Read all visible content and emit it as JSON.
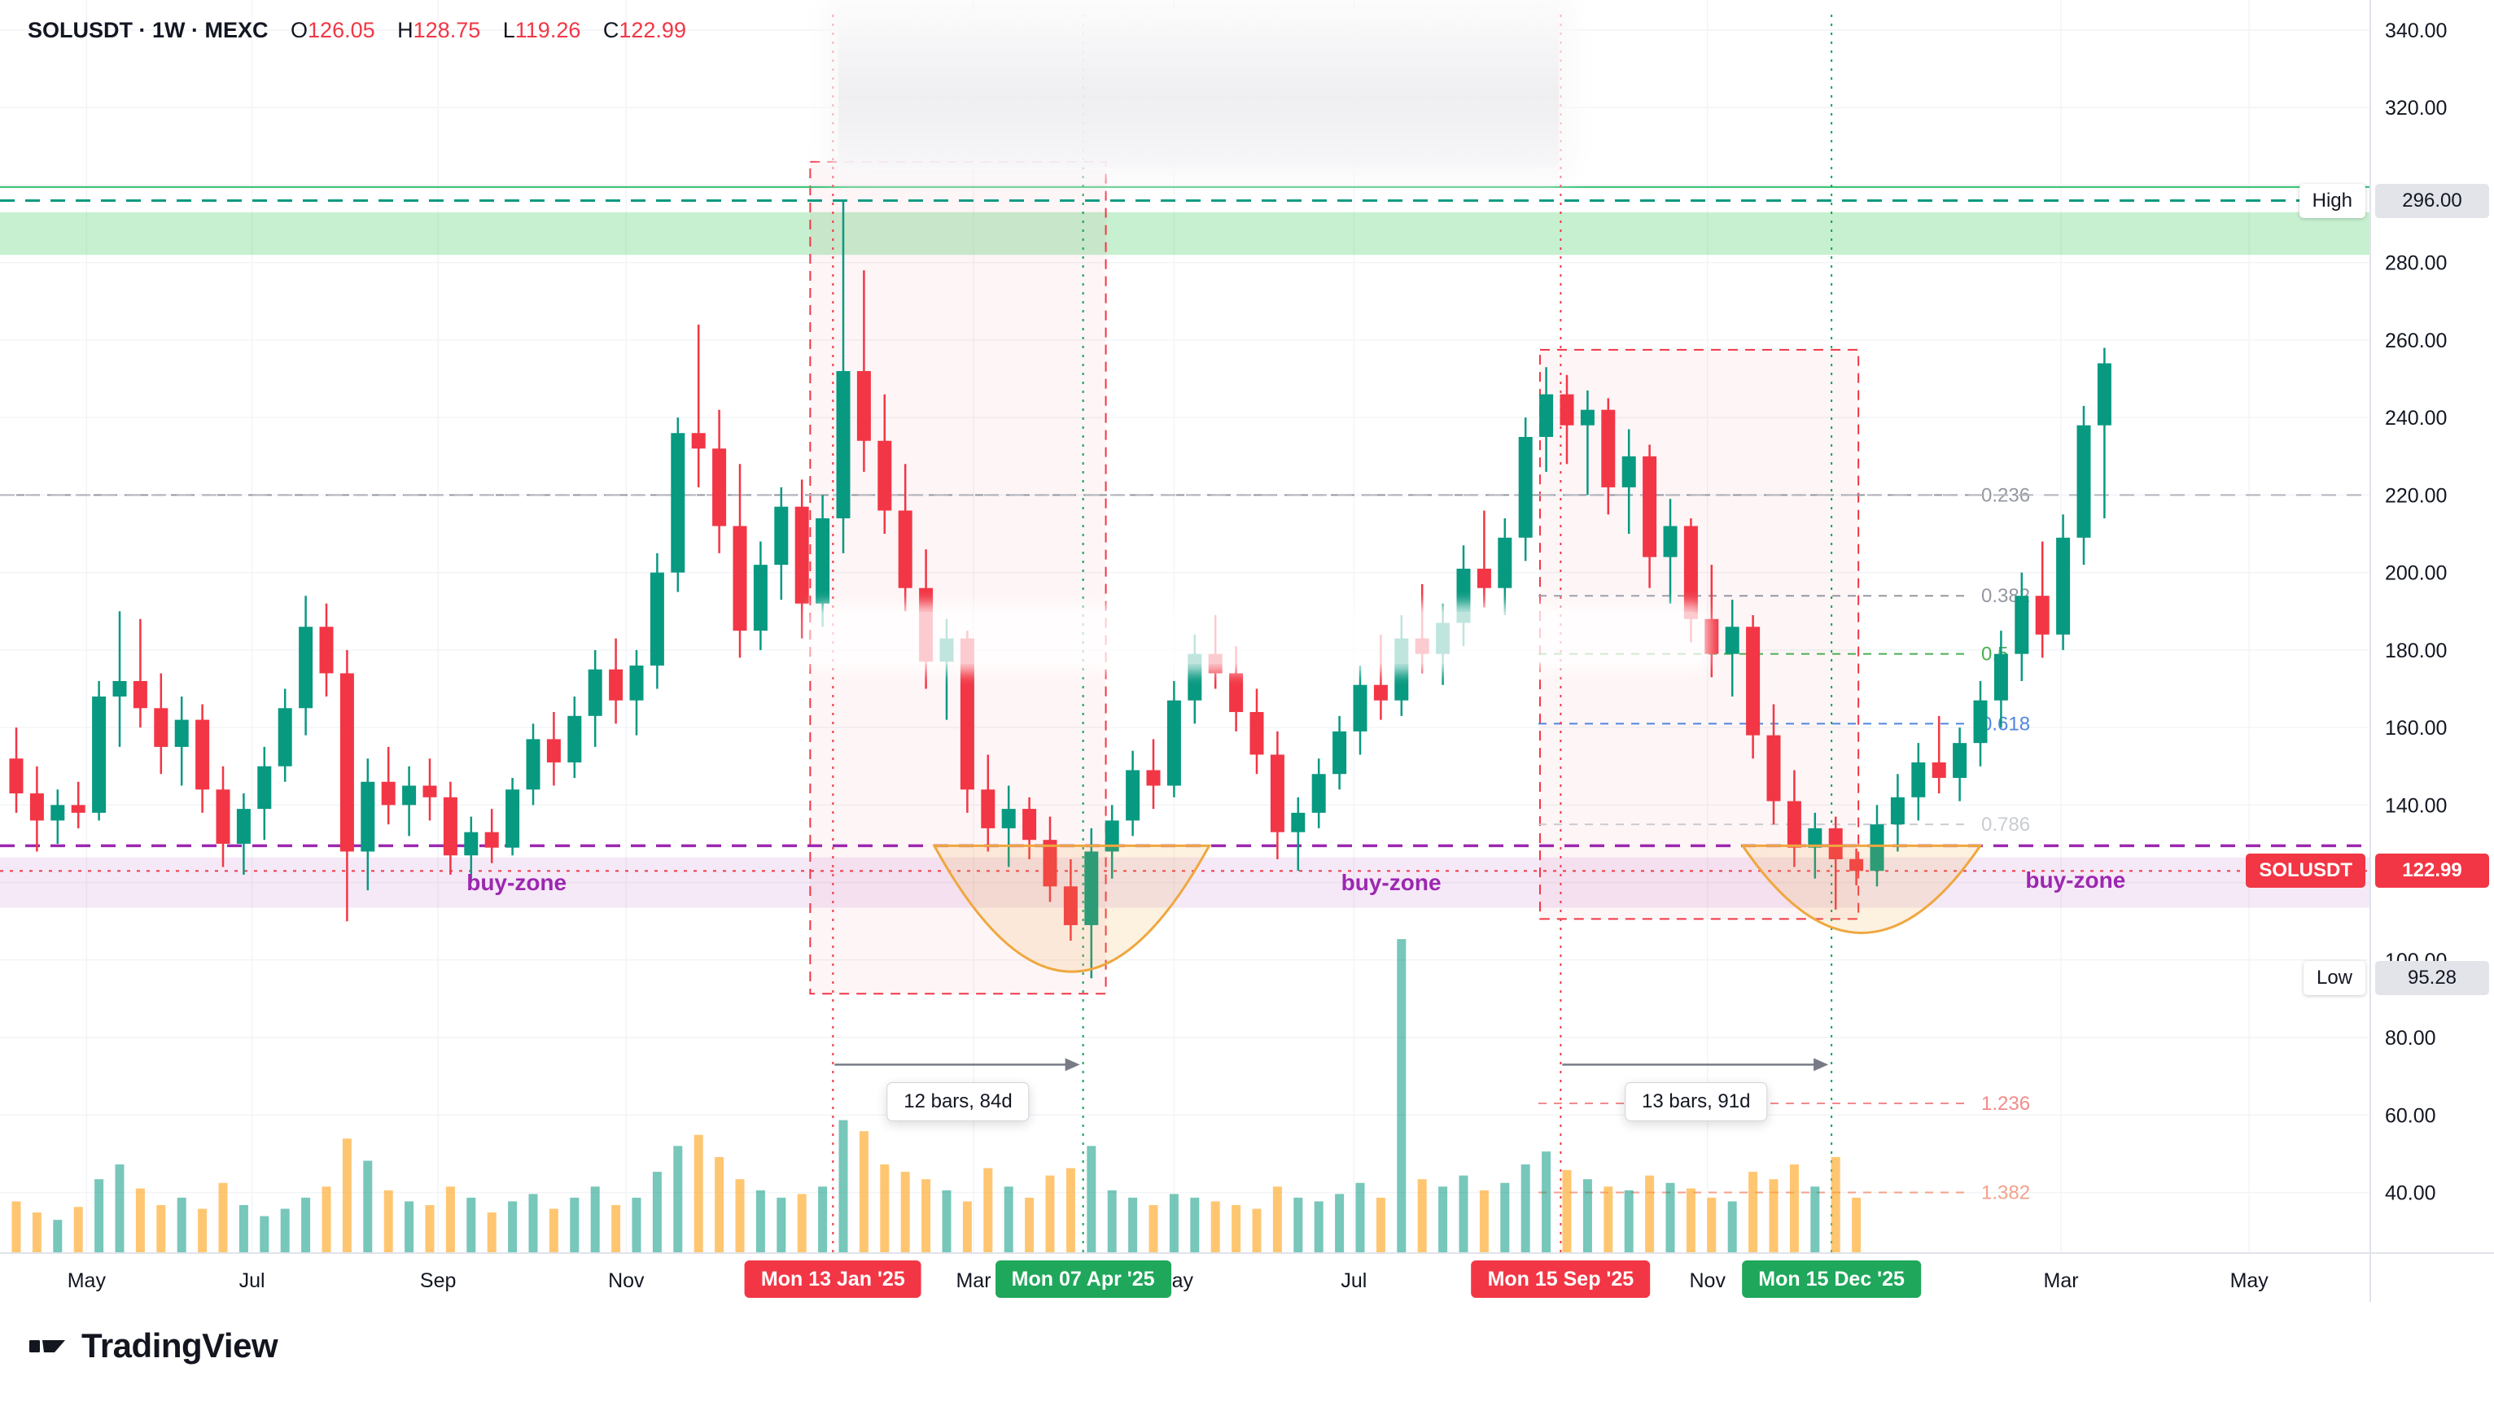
{
  "header": {
    "symbol_line": "SOLUSDT · 1W · MEXC",
    "ohlc": [
      {
        "k": "O",
        "v": "126.05"
      },
      {
        "k": "H",
        "v": "128.75"
      },
      {
        "k": "L",
        "v": "119.26"
      },
      {
        "k": "C",
        "v": "122.99"
      }
    ]
  },
  "brand": {
    "name": "TradingView"
  },
  "price_scale": {
    "ticks": [
      "340.00",
      "320.00",
      "280.00",
      "260.00",
      "240.00",
      "220.00",
      "200.00",
      "180.00",
      "160.00",
      "140.00",
      "100.00",
      "80.00",
      "60.00",
      "40.00"
    ],
    "tick_values": [
      340,
      320,
      280,
      260,
      240,
      220,
      200,
      180,
      160,
      140,
      100,
      80,
      60,
      40
    ],
    "high_badge": {
      "label": "High",
      "value": "296.00",
      "price": 296
    },
    "low_badge": {
      "label": "Low",
      "value": "95.28",
      "price": 95.28
    },
    "last_price_badge": {
      "label": "SOLUSDT",
      "value": "122.99",
      "price": 122.99,
      "color": "#f23645"
    }
  },
  "time_axis": {
    "months": [
      {
        "label": "May",
        "index": 3.4
      },
      {
        "label": "Jul",
        "index": 11.4
      },
      {
        "label": "Sep",
        "index": 20.4
      },
      {
        "label": "Nov",
        "index": 29.5
      },
      {
        "label": "Mar",
        "index": 46.3
      },
      {
        "label": "May",
        "index": 56.0
      },
      {
        "label": "Jul",
        "index": 64.7
      },
      {
        "label": "Nov",
        "index": 81.8
      },
      {
        "label": "Mar",
        "index": 98.9
      },
      {
        "label": "May",
        "index": 108.0
      }
    ],
    "date_badges": [
      {
        "label": "Mon 13 Jan '25",
        "index": 39.5,
        "color": "#f23645"
      },
      {
        "label": "Mon 07 Apr '25",
        "index": 51.6,
        "color": "#1fa75b"
      },
      {
        "label": "Mon 15 Sep '25",
        "index": 74.7,
        "color": "#f23645"
      },
      {
        "label": "Mon 15 Dec '25",
        "index": 87.8,
        "color": "#1fa75b"
      }
    ]
  },
  "annotations": {
    "buy_zone_label": "buy-zone",
    "buy_zones": [
      {
        "index": 24.2,
        "price": 120.0
      },
      {
        "index": 66.5,
        "price": 120.0
      },
      {
        "index": 99.6,
        "price": 120.5
      }
    ],
    "bar_counters": [
      {
        "label": "12 bars, 84d",
        "from_index": 39.5,
        "to_index": 51.6,
        "price": 73
      },
      {
        "label": "13 bars, 91d",
        "from_index": 74.7,
        "to_index": 87.8,
        "price": 73
      }
    ],
    "range_boxes": [
      {
        "from_index": 38.4,
        "to_index": 52.7,
        "price_top": 306,
        "price_bottom": 91.3
      },
      {
        "from_index": 73.7,
        "to_index": 89.1,
        "price_top": 257.5,
        "price_bottom": 110.6
      }
    ],
    "vertical_lines": [
      {
        "index": 39.5,
        "color": "#f23645"
      },
      {
        "index": 51.6,
        "color": "#0aa551"
      },
      {
        "index": 74.7,
        "color": "#f23645"
      },
      {
        "index": 87.8,
        "color": "#0aa551"
      }
    ],
    "horizontal_lines": [
      {
        "price": 299.5,
        "style": "solid",
        "color": "#2fbf6b",
        "width": 2,
        "full": true
      },
      {
        "price": 296.0,
        "style": "dashed",
        "color": "#089981",
        "width": 3,
        "full": true
      },
      {
        "price": 220.0,
        "style": "dashed",
        "color": "#b2b5be",
        "width": 2,
        "full": true
      },
      {
        "price": 129.5,
        "style": "dashed",
        "color": "#9c27b0",
        "width": 3.5,
        "full": true
      },
      {
        "price": 122.99,
        "style": "dotted",
        "color": "#f23645",
        "width": 2,
        "full": true
      }
    ],
    "bands": [
      {
        "price_top": 293.0,
        "price_bottom": 282.0,
        "color": "rgba(94,212,121,0.35)"
      },
      {
        "price_top": 126.5,
        "price_bottom": 113.5,
        "color": "rgba(156,39,176,0.10)"
      }
    ],
    "arcs": [
      {
        "from_index": 44.4,
        "to_index": 57.7,
        "chord_price": 129.5,
        "depth_price": 97
      },
      {
        "from_index": 83.5,
        "to_index": 95.0,
        "chord_price": 129.5,
        "depth_price": 107
      }
    ],
    "fib_levels": [
      {
        "label": "0.236",
        "price": 220,
        "color": "#9598a1",
        "full_width": true
      },
      {
        "label": "0.382",
        "price": 194,
        "color": "#9598a1",
        "full_width": false
      },
      {
        "label": "0.5",
        "price": 179,
        "color": "#4caf50",
        "full_width": false
      },
      {
        "label": "0.618",
        "price": 161,
        "color": "#5086e0",
        "full_width": false
      },
      {
        "label": "0.786",
        "price": 135,
        "color": "#c9ccd2",
        "full_width": false
      },
      {
        "label": "1.236",
        "price": 63,
        "color": "#f28b8b",
        "full_width": false
      },
      {
        "label": "1.382",
        "price": 40,
        "color": "#f2a28b",
        "full_width": false
      }
    ]
  },
  "chart_data": {
    "type": "candlestick",
    "title": "SOLUSDT weekly candles on MEXC",
    "x_axis": "time (weekly bars, May 2024 - May 2026 visible)",
    "y_axis": "price (USDT)",
    "y_range": [
      30,
      345
    ],
    "grid": true,
    "high": 296.0,
    "low": 95.28,
    "last_bar": {
      "open": 126.05,
      "high": 128.75,
      "low": 119.26,
      "close": 122.99
    },
    "up_color": "#089981",
    "down_color": "#f23645",
    "vol_up_color": "rgba(8,153,129,0.55)",
    "vol_down_color": "rgba(255,167,38,0.65)",
    "projection_start_index": 90,
    "candles": [
      [
        152,
        160,
        138,
        143
      ],
      [
        143,
        150,
        128,
        136
      ],
      [
        136,
        144,
        130,
        140
      ],
      [
        140,
        146,
        134,
        138
      ],
      [
        138,
        172,
        136,
        168
      ],
      [
        168,
        190,
        155,
        172
      ],
      [
        172,
        188,
        160,
        165
      ],
      [
        165,
        174,
        148,
        155
      ],
      [
        155,
        168,
        145,
        162
      ],
      [
        162,
        166,
        138,
        144
      ],
      [
        144,
        150,
        124,
        130
      ],
      [
        130,
        143,
        122,
        139
      ],
      [
        139,
        155,
        131,
        150
      ],
      [
        150,
        170,
        146,
        165
      ],
      [
        165,
        194,
        158,
        186
      ],
      [
        186,
        192,
        168,
        174
      ],
      [
        174,
        180,
        110,
        128
      ],
      [
        128,
        152,
        118,
        146
      ],
      [
        146,
        155,
        135,
        140
      ],
      [
        140,
        150,
        132,
        145
      ],
      [
        145,
        152,
        136,
        142
      ],
      [
        142,
        146,
        122,
        127
      ],
      [
        127,
        137,
        120,
        133
      ],
      [
        133,
        139,
        125,
        129
      ],
      [
        129,
        147,
        127,
        144
      ],
      [
        144,
        161,
        140,
        157
      ],
      [
        157,
        164,
        145,
        151
      ],
      [
        151,
        168,
        147,
        163
      ],
      [
        163,
        180,
        155,
        175
      ],
      [
        175,
        183,
        161,
        167
      ],
      [
        167,
        180,
        158,
        176
      ],
      [
        176,
        205,
        170,
        200
      ],
      [
        200,
        240,
        195,
        236
      ],
      [
        236,
        264,
        222,
        232
      ],
      [
        232,
        242,
        205,
        212
      ],
      [
        212,
        228,
        178,
        185
      ],
      [
        185,
        208,
        180,
        202
      ],
      [
        202,
        222,
        193,
        217
      ],
      [
        217,
        224,
        183,
        192
      ],
      [
        192,
        220,
        186,
        214
      ],
      [
        214,
        296,
        205,
        252
      ],
      [
        252,
        278,
        226,
        234
      ],
      [
        234,
        246,
        210,
        216
      ],
      [
        216,
        228,
        190,
        196
      ],
      [
        196,
        206,
        170,
        177
      ],
      [
        177,
        188,
        162,
        183
      ],
      [
        183,
        185,
        138,
        144
      ],
      [
        144,
        153,
        128,
        134
      ],
      [
        134,
        145,
        124,
        139
      ],
      [
        139,
        142,
        126,
        131
      ],
      [
        131,
        137,
        115,
        119
      ],
      [
        119,
        126,
        105,
        109
      ],
      [
        109,
        134,
        95.28,
        128
      ],
      [
        128,
        140,
        121,
        136
      ],
      [
        136,
        154,
        132,
        149
      ],
      [
        149,
        157,
        139,
        145
      ],
      [
        145,
        172,
        142,
        167
      ],
      [
        167,
        184,
        161,
        179
      ],
      [
        179,
        189,
        170,
        174
      ],
      [
        174,
        181,
        159,
        164
      ],
      [
        164,
        170,
        148,
        153
      ],
      [
        153,
        159,
        126,
        133
      ],
      [
        133,
        142,
        123,
        138
      ],
      [
        138,
        152,
        134,
        148
      ],
      [
        148,
        163,
        144,
        159
      ],
      [
        159,
        176,
        153,
        171
      ],
      [
        171,
        184,
        162,
        167
      ],
      [
        167,
        189,
        163,
        183
      ],
      [
        183,
        197,
        174,
        179
      ],
      [
        179,
        192,
        171,
        187
      ],
      [
        187,
        207,
        181,
        201
      ],
      [
        201,
        216,
        191,
        196
      ],
      [
        196,
        214,
        189,
        209
      ],
      [
        209,
        240,
        203,
        235
      ],
      [
        235,
        253,
        226,
        246
      ],
      [
        246,
        251,
        228,
        238
      ],
      [
        238,
        247,
        220,
        242
      ],
      [
        242,
        245,
        215,
        222
      ],
      [
        222,
        237,
        210,
        230
      ],
      [
        230,
        233,
        196,
        204
      ],
      [
        204,
        219,
        192,
        212
      ],
      [
        212,
        214,
        182,
        188
      ],
      [
        188,
        202,
        173,
        179
      ],
      [
        179,
        193,
        168,
        186
      ],
      [
        186,
        189,
        152,
        158
      ],
      [
        158,
        166,
        135,
        141
      ],
      [
        141,
        149,
        124,
        129
      ],
      [
        129,
        138,
        121,
        134
      ],
      [
        134,
        137,
        113,
        126
      ],
      [
        126.05,
        128.75,
        119.26,
        122.99
      ],
      [
        123,
        140,
        119,
        135
      ],
      [
        135,
        148,
        128,
        142
      ],
      [
        142,
        156,
        136,
        151
      ],
      [
        151,
        163,
        143,
        147
      ],
      [
        147,
        160,
        141,
        156
      ],
      [
        156,
        172,
        150,
        167
      ],
      [
        167,
        185,
        160,
        179
      ],
      [
        179,
        200,
        172,
        194
      ],
      [
        194,
        208,
        178,
        184
      ],
      [
        184,
        215,
        180,
        209
      ],
      [
        209,
        243,
        202,
        238
      ],
      [
        238,
        258,
        214,
        254
      ]
    ],
    "volumes": [
      28,
      22,
      18,
      25,
      40,
      48,
      35,
      26,
      30,
      24,
      38,
      26,
      20,
      24,
      30,
      36,
      62,
      50,
      34,
      28,
      26,
      36,
      30,
      22,
      28,
      32,
      24,
      30,
      36,
      26,
      30,
      44,
      58,
      64,
      52,
      40,
      34,
      30,
      32,
      36,
      72,
      66,
      48,
      44,
      40,
      34,
      28,
      46,
      36,
      30,
      42,
      46,
      58,
      34,
      30,
      26,
      32,
      30,
      28,
      26,
      24,
      36,
      30,
      28,
      32,
      38,
      30,
      170,
      40,
      36,
      42,
      34,
      38,
      48,
      55,
      45,
      40,
      36,
      34,
      42,
      38,
      35,
      30,
      28,
      44,
      40,
      48,
      36,
      52,
      30
    ]
  }
}
